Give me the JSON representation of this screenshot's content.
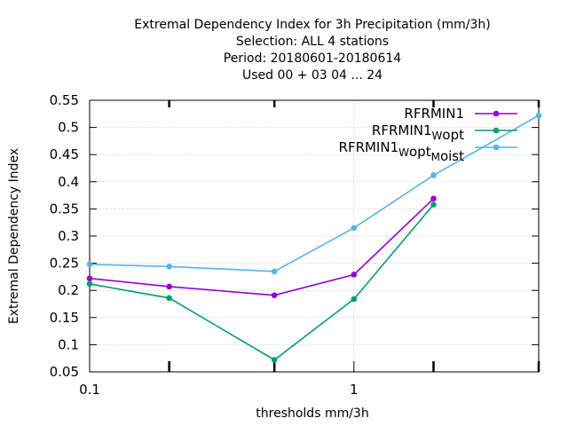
{
  "chart_data": {
    "type": "line",
    "title_lines": [
      "Extremal Dependency Index  for 3h Precipitation (mm/3h)",
      "Selection: ALL      4 stations",
      "Period: 20180601-20180614",
      "Used  00 + 03 04 ... 24"
    ],
    "xlabel": "thresholds mm/3h",
    "ylabel": "Extremal Dependency Index",
    "x_scale": "log",
    "xlim": [
      0.1,
      5
    ],
    "ylim": [
      0.05,
      0.55
    ],
    "x_ticks": [
      {
        "value": 0.1,
        "label": "0.1"
      },
      {
        "value": 1,
        "label": "1"
      }
    ],
    "x_minor_ticks": [
      0.2,
      0.5,
      2,
      5
    ],
    "y_ticks": [
      0.05,
      0.1,
      0.15,
      0.2,
      0.25,
      0.3,
      0.35,
      0.4,
      0.45,
      0.5,
      0.55
    ],
    "y_tick_labels": [
      "0.05",
      "0.1",
      "0.15",
      "0.2",
      "0.25",
      "0.3",
      "0.35",
      "0.4",
      "0.45",
      "0.5",
      "0.55"
    ],
    "grid": true,
    "legend_position": "top-right",
    "series": [
      {
        "name": "RFRMIN1",
        "name_parts": [
          {
            "t": "RFRMIN1"
          }
        ],
        "color": "#9400d3",
        "x": [
          0.1,
          0.2,
          0.5,
          1,
          2
        ],
        "y": [
          0.222,
          0.207,
          0.191,
          0.229,
          0.369
        ]
      },
      {
        "name": "RFRMIN1_Wopt",
        "name_parts": [
          {
            "t": "RFRMIN1"
          },
          {
            "t": "W",
            "sub": true
          },
          {
            "t": "opt"
          }
        ],
        "color": "#009e73",
        "x": [
          0.1,
          0.2,
          0.5,
          1,
          2
        ],
        "y": [
          0.212,
          0.186,
          0.072,
          0.184,
          0.358
        ]
      },
      {
        "name": "RFRMIN1_Wopt_Moist",
        "name_parts": [
          {
            "t": "RFRMIN1"
          },
          {
            "t": "W",
            "sub": true
          },
          {
            "t": "opt"
          },
          {
            "t": "M",
            "sub": true
          },
          {
            "t": "oist"
          }
        ],
        "color": "#56b4e9",
        "x": [
          0.1,
          0.2,
          0.5,
          1,
          2,
          5
        ],
        "y": [
          0.248,
          0.244,
          0.235,
          0.315,
          0.412,
          0.522
        ]
      }
    ]
  }
}
